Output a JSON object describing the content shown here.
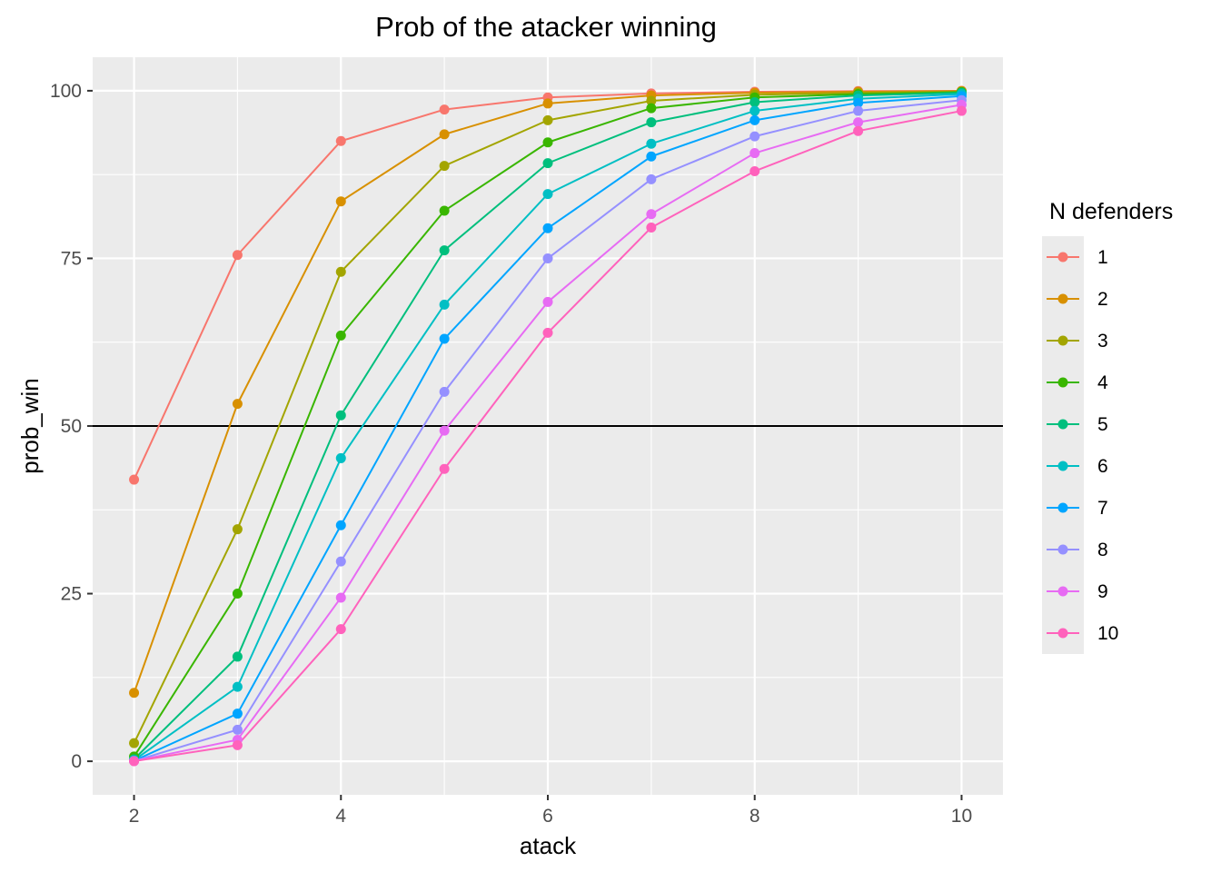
{
  "chart_data": {
    "type": "line",
    "title": "Prob of the atacker winning",
    "xlabel": "atack",
    "ylabel": "prob_win",
    "xlim": [
      1.6,
      10.4
    ],
    "ylim": [
      -5,
      105
    ],
    "x_ticks": [
      2,
      4,
      6,
      8,
      10
    ],
    "y_ticks": [
      0,
      25,
      50,
      75,
      100
    ],
    "hline": 50,
    "grid": true,
    "legend": {
      "title": "N defenders",
      "position": "right"
    },
    "x": [
      2,
      3,
      4,
      5,
      6,
      7,
      8,
      9,
      10
    ],
    "series": [
      {
        "name": "1",
        "color": "#F8766D",
        "values": [
          42.0,
          75.5,
          92.5,
          97.2,
          99.0,
          99.6,
          99.85,
          99.95,
          99.98
        ]
      },
      {
        "name": "2",
        "color": "#D89000",
        "values": [
          10.2,
          53.3,
          83.5,
          93.5,
          98.1,
          99.3,
          99.7,
          99.85,
          99.95
        ]
      },
      {
        "name": "3",
        "color": "#A3A500",
        "values": [
          2.7,
          34.6,
          73.0,
          88.8,
          95.6,
          98.5,
          99.4,
          99.7,
          99.85
        ]
      },
      {
        "name": "4",
        "color": "#39B600",
        "values": [
          0.7,
          25.0,
          63.5,
          82.1,
          92.3,
          97.4,
          99.0,
          99.5,
          99.8
        ]
      },
      {
        "name": "5",
        "color": "#00BF7D",
        "values": [
          0.3,
          15.6,
          51.6,
          76.2,
          89.2,
          95.3,
          98.3,
          99.3,
          99.7
        ]
      },
      {
        "name": "6",
        "color": "#00BFC4",
        "values": [
          0.15,
          11.1,
          45.2,
          68.1,
          84.6,
          92.1,
          97.0,
          98.8,
          99.5
        ]
      },
      {
        "name": "7",
        "color": "#00A5FF",
        "values": [
          0.08,
          7.1,
          35.2,
          63.0,
          79.5,
          90.2,
          95.6,
          98.2,
          99.2
        ]
      },
      {
        "name": "8",
        "color": "#9590FF",
        "values": [
          0.04,
          4.7,
          29.8,
          55.1,
          75.0,
          86.8,
          93.2,
          97.0,
          98.6
        ]
      },
      {
        "name": "9",
        "color": "#E76BF3",
        "values": [
          0.02,
          3.2,
          24.4,
          49.3,
          68.5,
          81.6,
          90.7,
          95.3,
          97.9
        ]
      },
      {
        "name": "10",
        "color": "#FF62BC",
        "values": [
          0.01,
          2.4,
          19.7,
          43.6,
          63.9,
          79.6,
          88.0,
          94.0,
          97.0
        ]
      }
    ]
  }
}
